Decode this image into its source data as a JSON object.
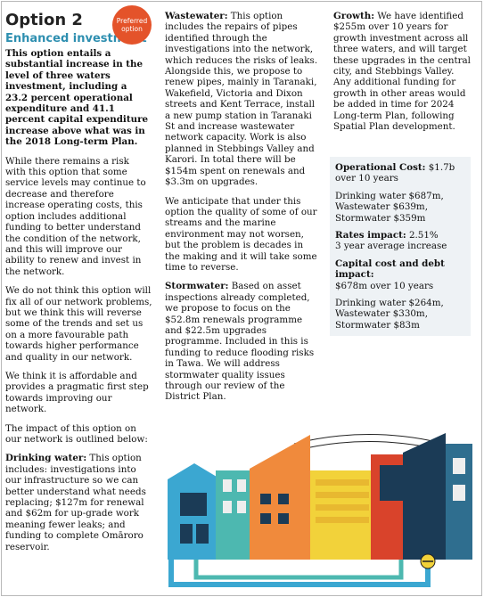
{
  "badge": {
    "line1": "Preferred",
    "line2": "option"
  },
  "col1": {
    "title": "Option 2",
    "subtitle": "Enhanced investment",
    "lead": "This option entails a substantial increase in the level of three waters investment, including a 23.2 percent operational expenditure and 41.1 percent capital expenditure increase above what was in the 2018 Long-term Plan.",
    "p1": "While there remains a risk with this option that some service levels may continue to decrease and therefore increase operating costs, this option includes additional funding to better understand the condition of the network, and this will improve our ability to renew and invest in the network.",
    "p2": "We do not think this option will fix all of our network problems, but we think this will reverse some of the trends and set us on a more favourable path towards higher performance and quality in our network.",
    "p3": "We think it is affordable and provides a pragmatic first step towards improving our network.",
    "p4": "The impact of this option on our network is outlined below:",
    "drink_head": "Drinking water:",
    "drink_body": " This option includes: investigations into our infrastructure so we can better understand what needs replacing; $127m for renewal and $62m for up-grade work meaning fewer leaks; and funding to complete Omāroro reservoir."
  },
  "col2": {
    "waste_head": "Wastewater:",
    "waste_body": " This option includes the repairs of pipes identified through the investigations into the network, which reduces the risks of leaks. Alongside this, we propose to renew pipes, mainly in Taranaki, Wakefield, Victoria and Dixon streets and Kent Terrace, install a new pump station in Taranaki St and increase wastewater network capacity. Work is also planned in Stebbings Valley and Karori. In total there will be $154m spent on renewals and $3.3m on upgrades.",
    "p2": "We anticipate that under this option the quality of some of our streams and the marine environment may not worsen, but the problem is decades in the making and it will take some time to reverse.",
    "storm_head": "Stormwater:",
    "storm_body": " Based on asset inspections already completed, we propose to focus on the $52.8m renewals programme and $22.5m upgrades programme. Included in this is funding to reduce flooding risks in Tawa. We will address stormwater quality issues through our review of the District Plan."
  },
  "col3": {
    "growth_head": "Growth:",
    "growth_body": " We have identified $255m over 10 years for growth investment across all three waters, and will target these upgrades in the central city, and Stebbings Valley. Any additional funding for growth in other areas would be added in time for 2024 Long-term Plan, following Spatial Plan development."
  },
  "cost_box": {
    "op_label": "Operational Cost:",
    "op_value": " $1.7b over 10 years",
    "op_breakdown": "Drinking water $687m, Wastewater $639m, Stormwater $359m",
    "rates_label": "Rates impact:",
    "rates_value": " 2.51%",
    "rates_note": "3 year average increase",
    "capital_label": "Capital cost and debt impact:",
    "capital_value": "$678m over 10 years",
    "capital_breakdown": "Drinking water $264m, Wastewater $330m, Stormwater $83m"
  },
  "colors": {
    "accent_blue": "#2e8fb0",
    "badge_orange": "#e4532a",
    "box_bg": "#eef2f5"
  }
}
